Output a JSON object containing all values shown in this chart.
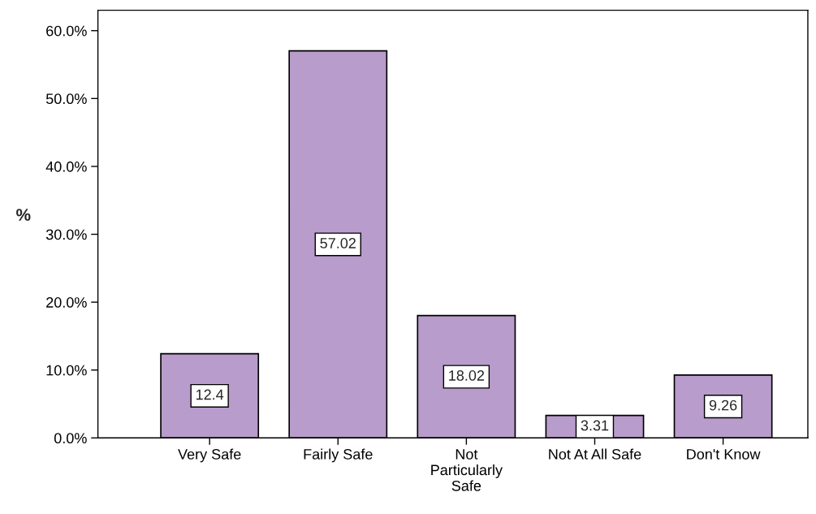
{
  "chart_data": {
    "type": "bar",
    "ylabel": "%",
    "categories": [
      "Very Safe",
      "Fairly Safe",
      "Not\nParticularly\nSafe",
      "Not At All Safe",
      "Don't Know"
    ],
    "values": [
      12.4,
      57.02,
      18.02,
      3.31,
      9.26
    ],
    "color": "#b89ccb",
    "ylim": [
      0,
      63
    ],
    "yticks": [
      {
        "value": 0,
        "label": "0.0%"
      },
      {
        "value": 10,
        "label": "10.0%"
      },
      {
        "value": 20,
        "label": "20.0%"
      },
      {
        "value": 30,
        "label": "30.0%"
      },
      {
        "value": 40,
        "label": "40.0%"
      },
      {
        "value": 50,
        "label": "50.0%"
      },
      {
        "value": 60,
        "label": "60.0%"
      }
    ],
    "data_labels": true,
    "grid": false
  }
}
